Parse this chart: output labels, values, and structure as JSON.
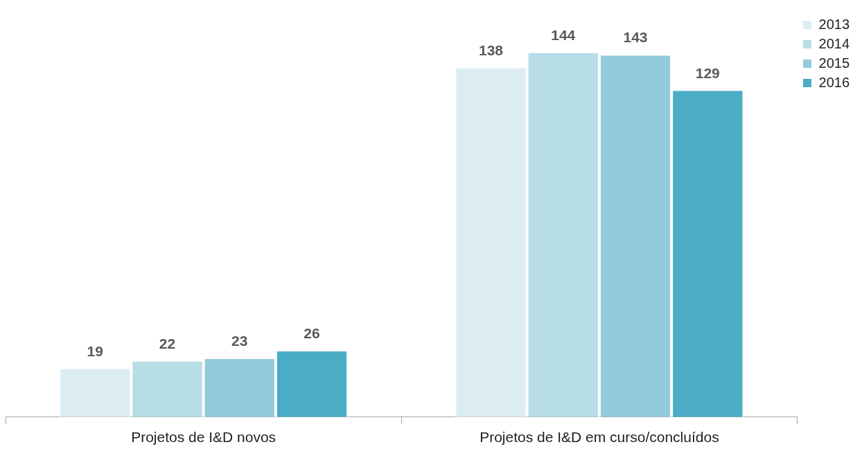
{
  "chart_data": {
    "type": "bar",
    "categories": [
      "Projetos de I&D novos",
      "Projetos de I&D em curso/concluídos"
    ],
    "series": [
      {
        "name": "2013",
        "color": "#dbedf3",
        "values": [
          19,
          138
        ]
      },
      {
        "name": "2014",
        "color": "#b7dde7",
        "values": [
          22,
          144
        ]
      },
      {
        "name": "2015",
        "color": "#92cbdb",
        "values": [
          23,
          143
        ]
      },
      {
        "name": "2016",
        "color": "#4bacc6",
        "values": [
          26,
          129
        ]
      }
    ],
    "data_labels": true,
    "legend": "top right",
    "grid": false
  }
}
